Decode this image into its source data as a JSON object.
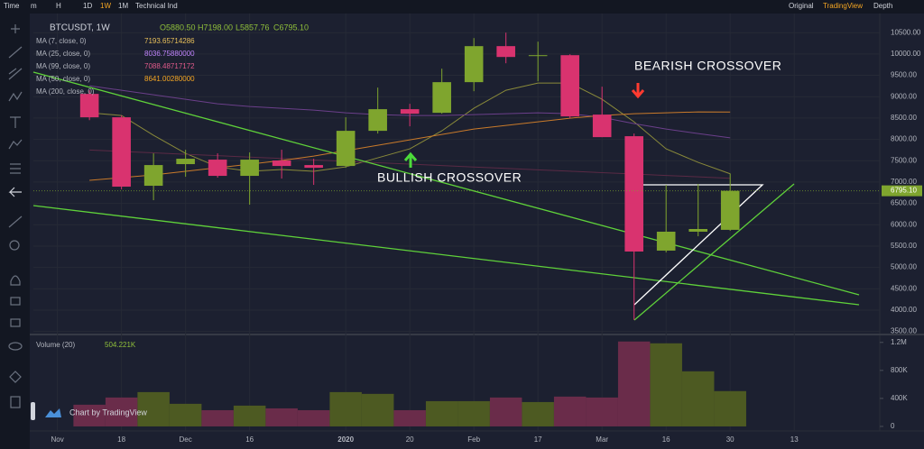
{
  "toolbar": {
    "left": [
      "Time",
      "m",
      "H",
      "1D",
      "1W",
      "1M",
      "Technical Ind"
    ],
    "active": "1W",
    "right": [
      "Original",
      "TradingView",
      "Depth"
    ],
    "right_active": "TradingView"
  },
  "watermark": "Chart by TradingView",
  "chart_data": [
    {
      "type": "candlestick",
      "title": "BTCUSDT, 1W",
      "ohlc_labels": [
        "O5880.50",
        "H7198.00",
        "L5857.76",
        "C6795.10"
      ],
      "x": [
        0,
        1,
        2,
        3,
        4,
        5,
        6,
        7,
        8,
        9,
        10,
        11,
        12,
        13,
        14,
        15,
        16,
        17,
        18,
        19,
        20
      ],
      "open": [
        9065,
        8517,
        6913,
        7420,
        7525,
        7145,
        7504,
        7398,
        7377,
        8200,
        8707,
        8622,
        9340,
        10184,
        9951,
        9972,
        8580,
        8074,
        5394,
        5837,
        5880.5
      ],
      "high": [
        9150,
        8560,
        7673,
        7757,
        7673,
        7694,
        7757,
        7546,
        8517,
        9213,
        8833,
        9656,
        10373,
        10500,
        10289,
        9994,
        9234,
        8137,
        6934,
        6955,
        7198
      ],
      "low": [
        8450,
        6830,
        6575,
        7124,
        7103,
        6470,
        7082,
        6934,
        7335,
        8137,
        8306,
        8601,
        9128,
        9783,
        9360,
        8496,
        8052,
        3769,
        5352,
        5730,
        5857.76
      ],
      "close": [
        8517,
        6892,
        7398,
        7546,
        7145,
        7525,
        7377,
        7335,
        8200,
        8707,
        8601,
        9340,
        10184,
        9930,
        9972,
        8538,
        8052,
        5373,
        5837,
        5900,
        6795.1
      ],
      "up_color": "#7fa52e",
      "down_color": "#d9336f",
      "last_price_label": "6795.10",
      "xlim": [
        -1.75,
        24.67
      ],
      "ylim": [
        3450,
        10800
      ],
      "xticks": [
        {
          "value": -1,
          "label": "Nov"
        },
        {
          "value": 1,
          "label": "18"
        },
        {
          "value": 3,
          "label": "Dec"
        },
        {
          "value": 5,
          "label": "16"
        },
        {
          "value": 8,
          "label": "2020"
        },
        {
          "value": 10,
          "label": "20"
        },
        {
          "value": 12,
          "label": "Feb"
        },
        {
          "value": 14,
          "label": "17"
        },
        {
          "value": 16,
          "label": "Mar"
        },
        {
          "value": 18,
          "label": "16"
        },
        {
          "value": 20,
          "label": "30"
        },
        {
          "value": 22,
          "label": "13"
        }
      ],
      "yticks": [
        {
          "value": 3500,
          "label": "3500.00"
        },
        {
          "value": 4000,
          "label": "4000.00"
        },
        {
          "value": 4500,
          "label": "4500.00"
        },
        {
          "value": 5000,
          "label": "5000.00"
        },
        {
          "value": 5500,
          "label": "5500.00"
        },
        {
          "value": 6000,
          "label": "6000.00"
        },
        {
          "value": 6500,
          "label": "6500.00"
        },
        {
          "value": 7000,
          "label": "7000.00"
        },
        {
          "value": 7500,
          "label": "7500.00"
        },
        {
          "value": 8000,
          "label": "8000.00"
        },
        {
          "value": 8500,
          "label": "8500.00"
        },
        {
          "value": 9000,
          "label": "9000.00"
        },
        {
          "value": 9500,
          "label": "9500.00"
        },
        {
          "value": 10000,
          "label": "10000.00"
        },
        {
          "value": 10500,
          "label": "10500.00"
        }
      ],
      "grid": true,
      "series": [
        {
          "name": "MA (7, close, 0)",
          "value_label": "7193.65714286",
          "color": "#e8c05a",
          "line_color": "#8a8a3a",
          "values": [
            8622,
            8559,
            8095,
            7673,
            7356,
            7251,
            7293,
            7251,
            7356,
            7567,
            7778,
            8200,
            8728,
            9150,
            9318,
            9318,
            8939,
            8411,
            7778,
            7462,
            7194
          ]
        },
        {
          "name": "MA (25, close, 0)",
          "value_label": "8036.75880000",
          "color": "#c084fc",
          "line_color": "#6b3f8a",
          "values": [
            9255,
            9150,
            9044,
            8939,
            8833,
            8770,
            8728,
            8685,
            8622,
            8580,
            8559,
            8559,
            8580,
            8601,
            8622,
            8601,
            8517,
            8369,
            8242,
            8137,
            8037
          ]
        },
        {
          "name": "MA (99, close, 0)",
          "value_label": "7088.48717172",
          "color": "#e05a8a",
          "line_color": "#5a2a45",
          "values": [
            7750,
            7717,
            7684,
            7651,
            7618,
            7585,
            7552,
            7519,
            7486,
            7453,
            7420,
            7386,
            7353,
            7320,
            7287,
            7254,
            7221,
            7188,
            7155,
            7122,
            7088
          ]
        },
        {
          "name": "MA (50, close, 0)",
          "value_label": "8641.00280000",
          "color": "#f5a623",
          "line_color": "#c97a2a",
          "values": [
            7040,
            7103,
            7166,
            7251,
            7335,
            7419,
            7504,
            7609,
            7736,
            7862,
            7989,
            8116,
            8242,
            8327,
            8411,
            8496,
            8559,
            8601,
            8622,
            8643,
            8641
          ]
        },
        {
          "name": "MA (200, close, 0)",
          "color": "#3a5fcd",
          "values": [
            null,
            null,
            null,
            null,
            null,
            null,
            null,
            null,
            null,
            null,
            null,
            null,
            null,
            null,
            null,
            null,
            null,
            null,
            null,
            null,
            null
          ]
        }
      ],
      "annotations": [
        "BEARISH CROSSOVER",
        "BULLISH CROSSOVER"
      ]
    },
    {
      "type": "bar",
      "title": "Volume (20)",
      "value_label": "504.221K",
      "value_label_color": "#8fbf3a",
      "x": [
        0,
        1,
        2,
        3,
        4,
        5,
        6,
        7,
        8,
        9,
        10,
        11,
        12,
        13,
        14,
        15,
        16,
        17,
        18,
        19,
        20
      ],
      "values": [
        310000,
        413000,
        490000,
        323000,
        232000,
        297000,
        258000,
        232000,
        490000,
        465000,
        232000,
        361000,
        361000,
        413000,
        348000,
        426000,
        413000,
        1213000,
        1187000,
        787000,
        504221
      ],
      "colors": [
        "#6a2c4a",
        "#6a2c4a",
        "#4d5a22",
        "#4d5a22",
        "#6a2c4a",
        "#4d5a22",
        "#6a2c4a",
        "#6a2c4a",
        "#4d5a22",
        "#4d5a22",
        "#6a2c4a",
        "#4d5a22",
        "#4d5a22",
        "#6a2c4a",
        "#4d5a22",
        "#6a2c4a",
        "#6a2c4a",
        "#6a2c4a",
        "#4d5a22",
        "#4d5a22",
        "#4d5a22"
      ],
      "xlim": [
        -1.75,
        24.67
      ],
      "ylim": [
        -65000,
        1300000
      ],
      "yticks": [
        0,
        {
          "value": 400000,
          "label": "400K"
        },
        {
          "value": 800000,
          "label": "800K"
        },
        {
          "value": 1200000,
          "label": "1.2M"
        }
      ]
    }
  ]
}
